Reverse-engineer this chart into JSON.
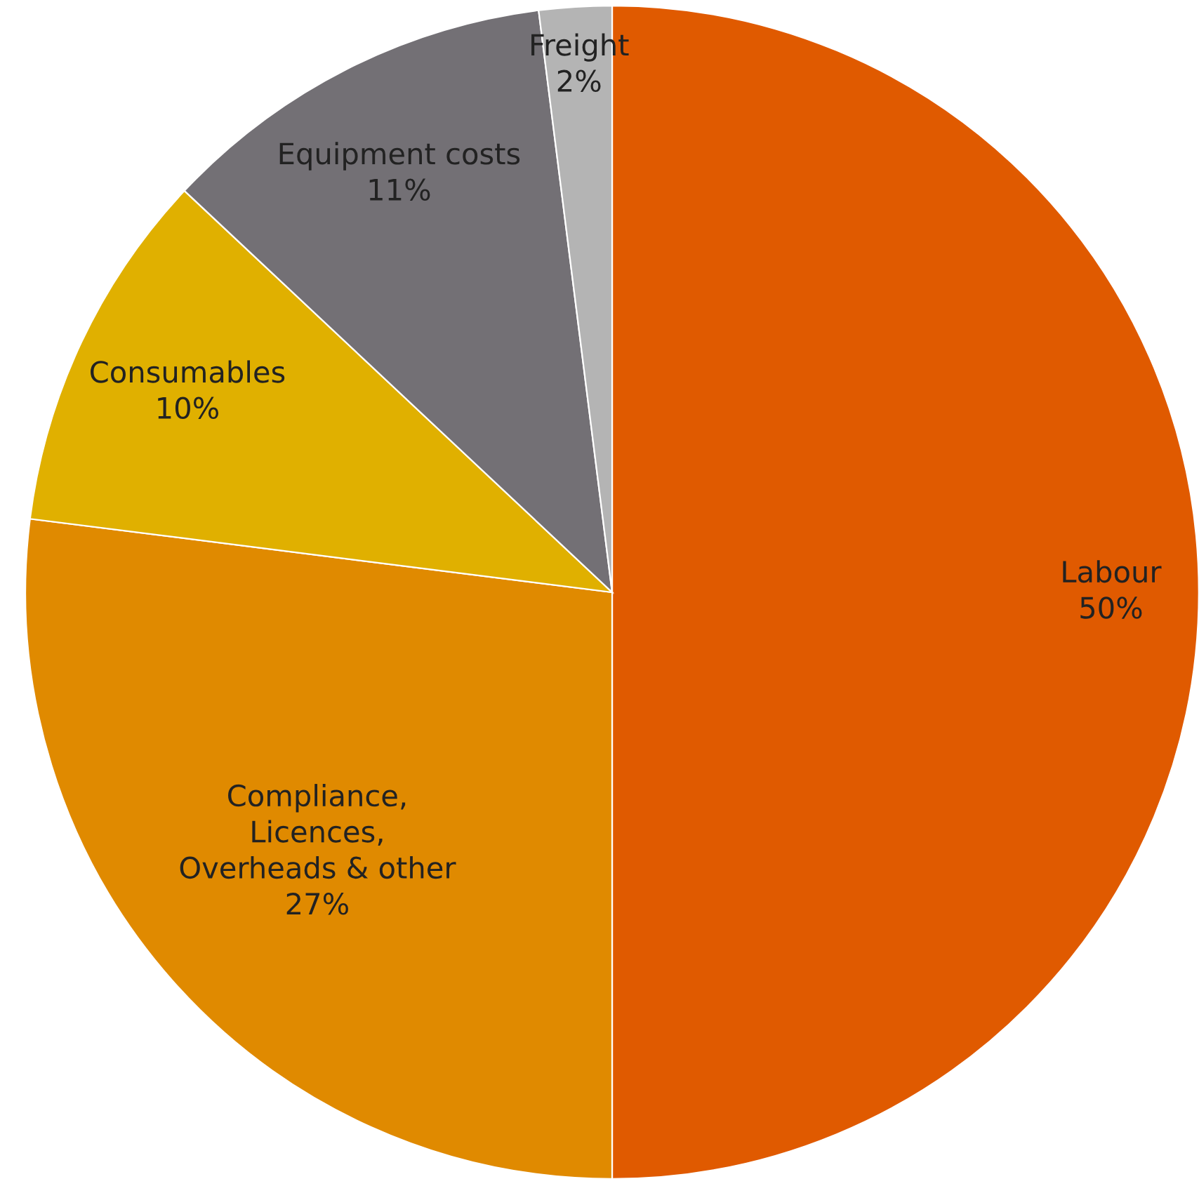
{
  "chart_data": {
    "type": "pie",
    "categories": [
      "Labour",
      "Compliance,\nLicences,\nOverheads & other",
      "Consumables",
      "Equipment costs",
      "Freight"
    ],
    "values": [
      50,
      27,
      10,
      11,
      2
    ],
    "value_labels": [
      "50%",
      "27%",
      "10%",
      "11%",
      "2%"
    ],
    "colors": [
      "#e05a00",
      "#e08a00",
      "#e0b000",
      "#737075",
      "#b4b4b4"
    ],
    "legend": false
  }
}
